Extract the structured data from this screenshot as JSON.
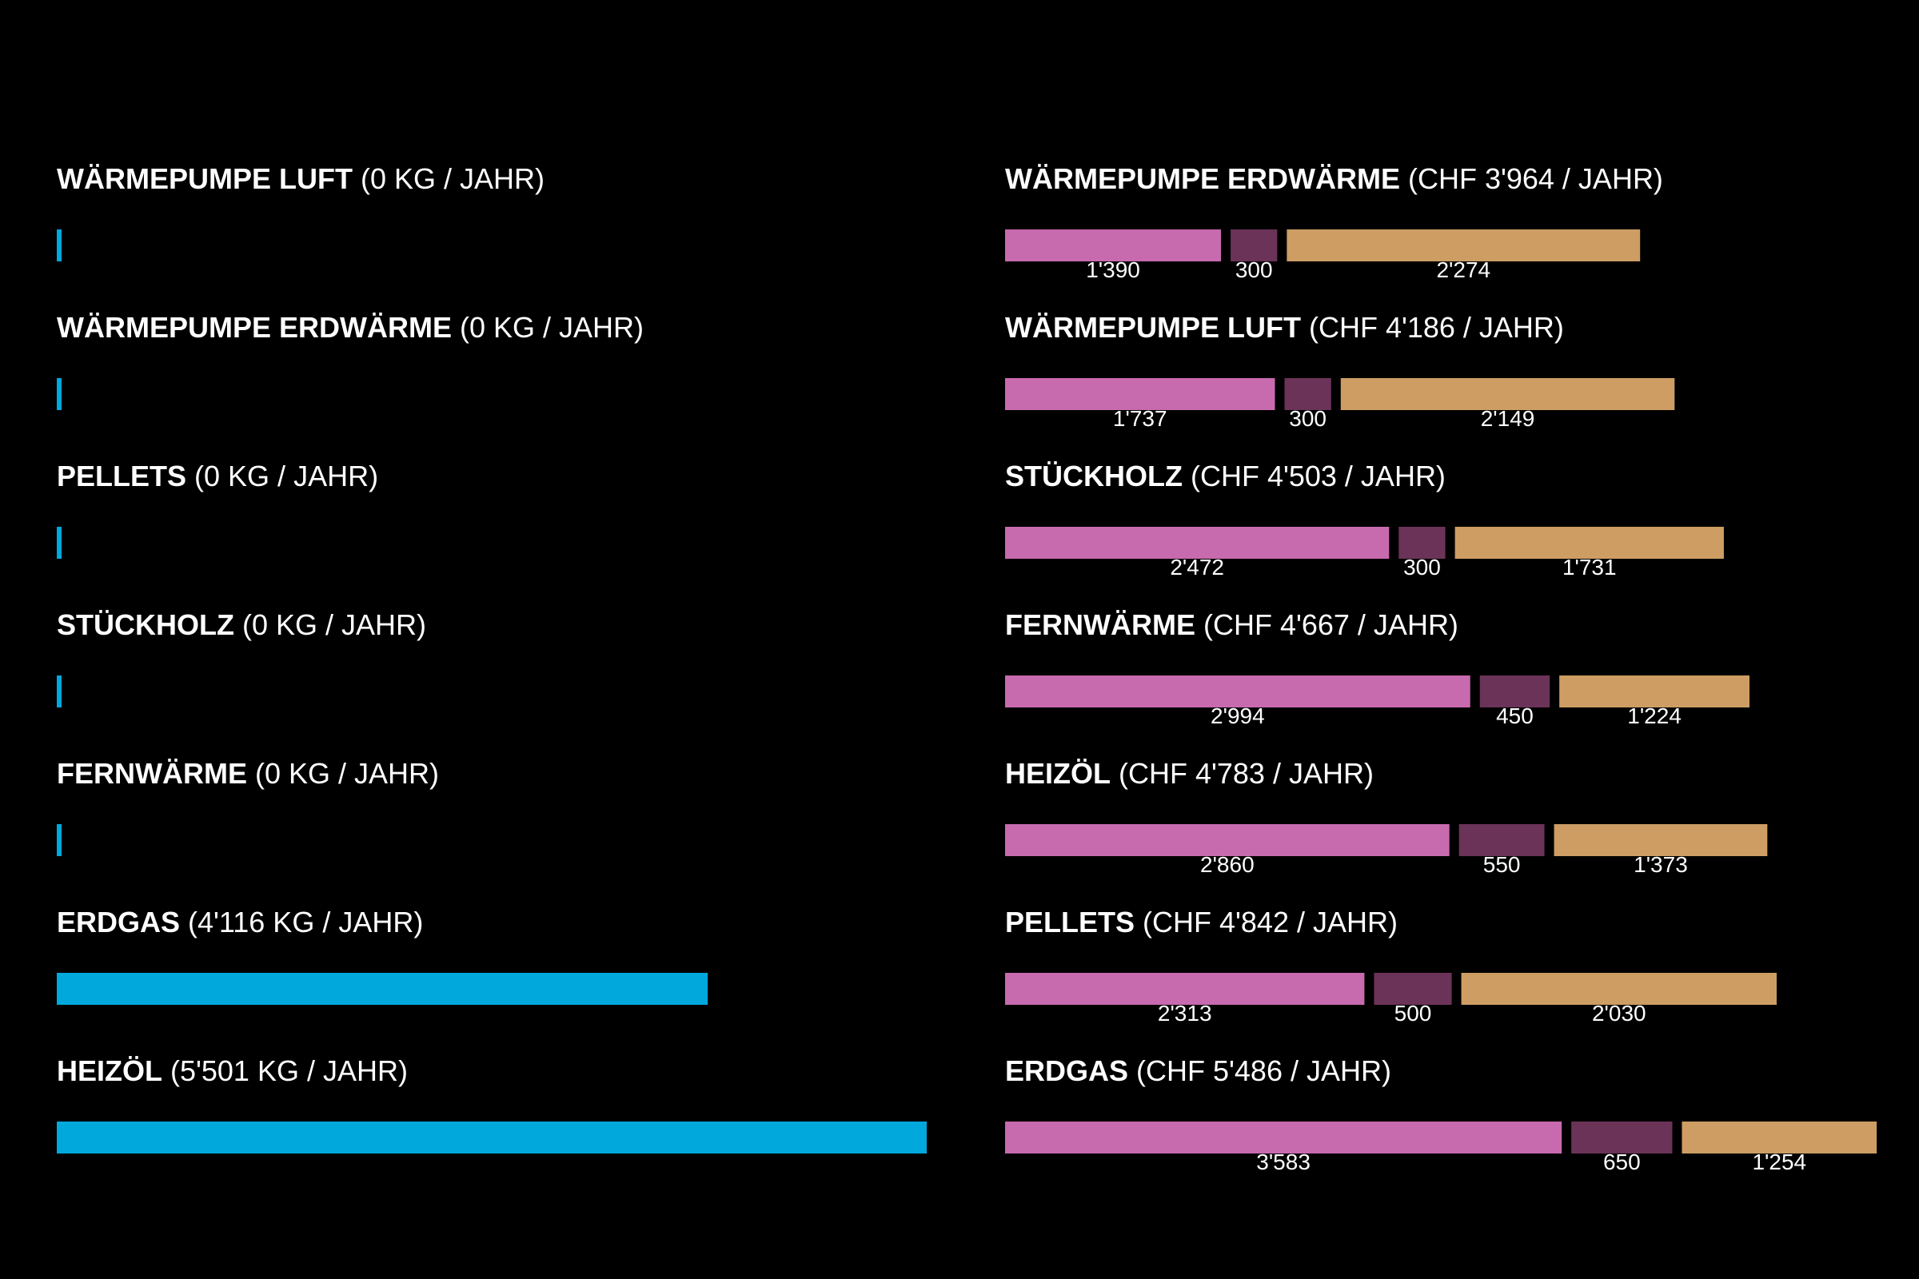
{
  "colors": {
    "background": "#000000",
    "co2_bar": "#00a8dc",
    "segment_1": "#c86aae",
    "segment_2": "#6b3358",
    "segment_3": "#cd9d64",
    "text": "#ffffff"
  },
  "chart_data": [
    {
      "type": "bar",
      "orientation": "horizontal",
      "series": [
        {
          "values": [
            0,
            0,
            0,
            0,
            0,
            4116,
            5501
          ]
        }
      ],
      "categories": [
        "WÄRMEPUMPE LUFT",
        "WÄRMEPUMPE ERDWÄRME",
        "PELLETS",
        "STÜCKHOLZ",
        "FERNWÄRME",
        "ERDGAS",
        "HEIZÖL"
      ],
      "labels": [
        "(0 KG / JAHR)",
        "(0 KG / JAHR)",
        "(0 KG / JAHR)",
        "(0 KG / JAHR)",
        "(0 KG / JAHR)",
        "(4'116 KG / JAHR)",
        "(5'501 KG / JAHR)"
      ],
      "xlim": [
        0,
        5501
      ]
    },
    {
      "type": "bar",
      "orientation": "horizontal",
      "stacked": true,
      "categories": [
        "WÄRMEPUMPE ERDWÄRME",
        "WÄRMEPUMPE LUFT",
        "STÜCKHOLZ",
        "FERNWÄRME",
        "HEIZÖL",
        "PELLETS",
        "ERDGAS"
      ],
      "labels": [
        "(CHF 3'964 / JAHR)",
        "(CHF 4'186 / JAHR)",
        "(CHF 4'503 / JAHR)",
        "(CHF 4'667 / JAHR)",
        "(CHF 4'783 / JAHR)",
        "(CHF 4'842 / JAHR)",
        "(CHF 5'486 / JAHR)"
      ],
      "series": [
        {
          "values": [
            1390,
            1737,
            2472,
            2994,
            2860,
            2313,
            3583
          ],
          "value_labels": [
            "1'390",
            "1'737",
            "2'472",
            "2'994",
            "2'860",
            "2'313",
            "3'583"
          ]
        },
        {
          "values": [
            300,
            300,
            300,
            450,
            550,
            500,
            650
          ],
          "value_labels": [
            "300",
            "300",
            "300",
            "450",
            "550",
            "500",
            "650"
          ]
        },
        {
          "values": [
            2274,
            2149,
            1731,
            1224,
            1373,
            2030,
            1254
          ],
          "value_labels": [
            "2'274",
            "2'149",
            "1'731",
            "1'224",
            "1'373",
            "2'030",
            "1'254"
          ]
        }
      ],
      "xlim": [
        0,
        5486
      ]
    }
  ]
}
